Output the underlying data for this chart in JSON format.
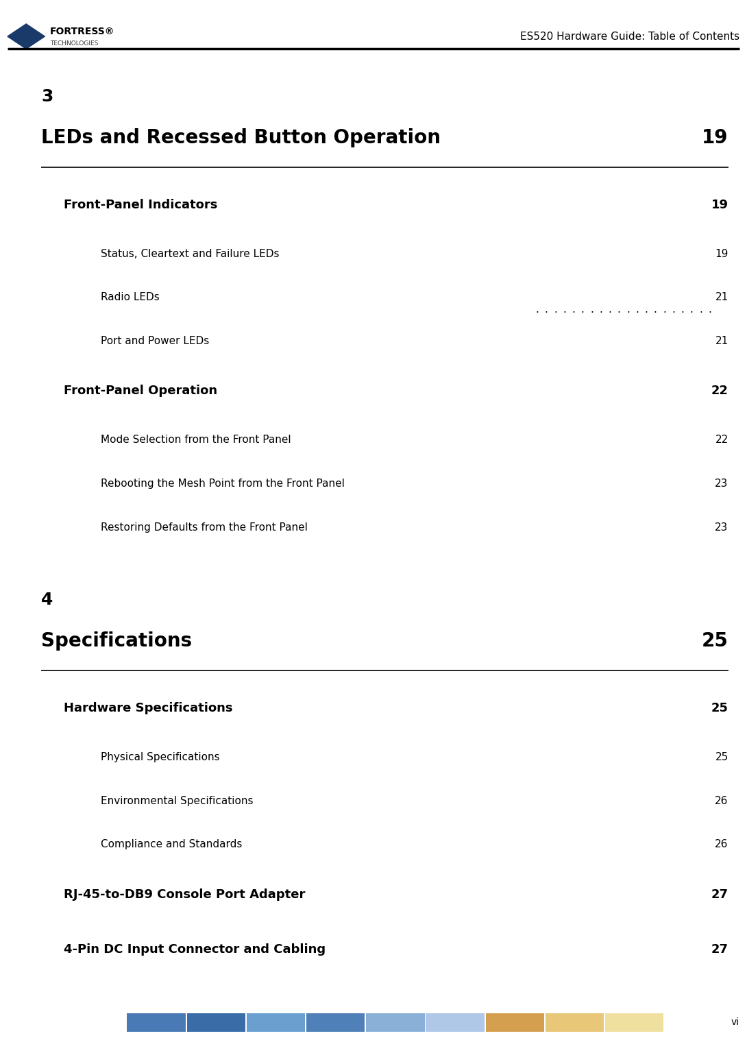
{
  "page_title": "ES520 Hardware Guide: Table of Contents",
  "page_num": "vi",
  "bg_color": "#ffffff",
  "header_line_color": "#000000",
  "title_color": "#000000",
  "text_color": "#000000",
  "chapters": [
    {
      "number": "3",
      "title": "LEDs and Recessed Button Operation",
      "page": "19",
      "font_size": 20,
      "bold": true,
      "indent": 0.055
    },
    {
      "number": "4",
      "title": "Specifications",
      "page": "25",
      "font_size": 20,
      "bold": true,
      "indent": 0.055
    }
  ],
  "entries": [
    {
      "text": "Front-Panel Indicators",
      "page": "19",
      "level": 1,
      "font_size": 13,
      "bold": true,
      "chapter": 0
    },
    {
      "text": "Status, Cleartext and Failure LEDs",
      "page": "19",
      "level": 2,
      "font_size": 11,
      "bold": false,
      "chapter": 0
    },
    {
      "text": "Radio LEDs",
      "page": "21",
      "level": 2,
      "font_size": 11,
      "bold": false,
      "chapter": 0
    },
    {
      "text": "Port and Power LEDs",
      "page": "21",
      "level": 2,
      "font_size": 11,
      "bold": false,
      "chapter": 0
    },
    {
      "text": "Front-Panel Operation",
      "page": "22",
      "level": 1,
      "font_size": 13,
      "bold": true,
      "chapter": 0
    },
    {
      "text": "Mode Selection from the Front Panel",
      "page": "22",
      "level": 2,
      "font_size": 11,
      "bold": false,
      "chapter": 0
    },
    {
      "text": "Rebooting the Mesh Point from the Front Panel",
      "page": "23",
      "level": 2,
      "font_size": 11,
      "bold": false,
      "chapter": 0
    },
    {
      "text": "Restoring Defaults from the Front Panel",
      "page": "23",
      "level": 2,
      "font_size": 11,
      "bold": false,
      "chapter": 0
    },
    {
      "text": "Hardware Specifications",
      "page": "25",
      "level": 1,
      "font_size": 13,
      "bold": true,
      "chapter": 1
    },
    {
      "text": "Physical Specifications",
      "page": "25",
      "level": 2,
      "font_size": 11,
      "bold": false,
      "chapter": 1
    },
    {
      "text": "Environmental Specifications",
      "page": "26",
      "level": 2,
      "font_size": 11,
      "bold": false,
      "chapter": 1
    },
    {
      "text": "Compliance and Standards",
      "page": "26",
      "level": 2,
      "font_size": 11,
      "bold": false,
      "chapter": 1
    },
    {
      "text": "RJ-45-to-DB9 Console Port Adapter",
      "page": "27",
      "level": 1,
      "font_size": 13,
      "bold": true,
      "chapter": 1
    },
    {
      "text": "4-Pin DC Input Connector and Cabling",
      "page": "27",
      "level": 1,
      "font_size": 13,
      "bold": true,
      "chapter": 1
    }
  ],
  "footer_bar_colors": [
    "#4a7ab5",
    "#3a6ca8",
    "#6a9fd0",
    "#5080b8",
    "#8ab0d8",
    "#b0c8e8",
    "#d4a050",
    "#e8c878",
    "#f0e0a0"
  ],
  "logo_diamond_color": "#1a3a6a"
}
